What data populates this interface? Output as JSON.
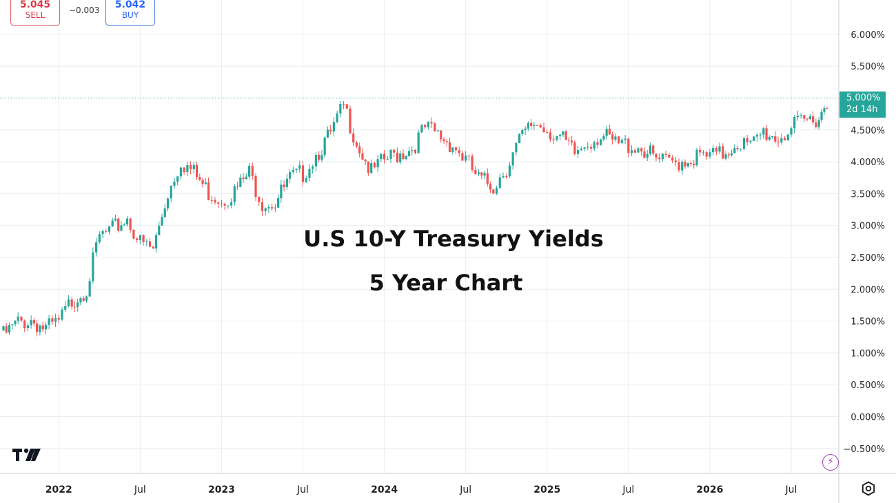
{
  "quotes": {
    "sell_price": "5.045",
    "sell_label": "SELL",
    "spread": "−0.003",
    "buy_price": "5.042",
    "buy_label": "BUY"
  },
  "last_price": {
    "value": "5.000%",
    "countdown": "2d 14h"
  },
  "icons": [
    "tradingview-logo-icon",
    "lightning-icon",
    "settings-gear-icon"
  ],
  "colors": {
    "up": "#26a69a",
    "down": "#ef5350",
    "grid": "#e8edf2",
    "price_line": "#26a69a",
    "bolt": "#ab47bc"
  },
  "chart_data": {
    "type": "candlestick",
    "title": "U.S 10-Y Treasury Yields",
    "subtitle": "5 Year Chart",
    "y_ticks": [
      "6.000%",
      "5.500%",
      "5.000%",
      "4.500%",
      "4.000%",
      "3.500%",
      "3.000%",
      "2.500%",
      "2.000%",
      "1.500%",
      "1.000%",
      "0.500%",
      "0.000%",
      "−0.500%"
    ],
    "y_tick_values": [
      6,
      5.5,
      5,
      4.5,
      4,
      3.5,
      3,
      2.5,
      2,
      1.5,
      1,
      0.5,
      0,
      -0.5
    ],
    "ylim": [
      -0.5,
      6.3
    ],
    "x_ticks": [
      "2022",
      "Jul",
      "2023",
      "Jul",
      "2024",
      "Jul",
      "2025",
      "Jul",
      "2026",
      "Jul"
    ],
    "x_tick_values": [
      2022.0,
      2022.5,
      2023.0,
      2023.5,
      2024.0,
      2024.5,
      2025.0,
      2025.5,
      2026.0,
      2026.5
    ],
    "xlim": [
      2021.66,
      2026.75
    ],
    "grid": true,
    "last_value": 5.0,
    "series": [
      {
        "x": [
          2021.66,
          2021.75,
          2021.83,
          2021.92,
          2022.0,
          2022.08,
          2022.17,
          2022.25,
          2022.33,
          2022.42,
          2022.5,
          2022.58,
          2022.67,
          2022.75,
          2022.83,
          2022.92,
          2023.0,
          2023.08,
          2023.17,
          2023.25,
          2023.33,
          2023.42,
          2023.5,
          2023.58,
          2023.67,
          2023.75,
          2023.83,
          2023.92,
          2024.0,
          2024.08,
          2024.17,
          2024.25,
          2024.33,
          2024.42,
          2024.5,
          2024.58,
          2024.67,
          2024.75,
          2024.83,
          2024.92,
          2025.0,
          2025.08,
          2025.17,
          2025.25,
          2025.33,
          2025.42,
          2025.5,
          2025.58,
          2025.67,
          2025.75,
          2025.83,
          2025.92,
          2026.0,
          2026.08,
          2026.17,
          2026.25,
          2026.33,
          2026.42,
          2026.5,
          2026.58,
          2026.67,
          2026.72
        ],
        "values": [
          1.35,
          1.55,
          1.6,
          1.45,
          1.55,
          1.9,
          2.1,
          2.9,
          3.0,
          3.2,
          2.8,
          2.7,
          3.6,
          4.1,
          3.9,
          3.6,
          3.5,
          3.6,
          3.9,
          3.45,
          3.45,
          3.8,
          3.9,
          4.2,
          4.5,
          4.95,
          4.4,
          3.9,
          4.1,
          4.2,
          4.3,
          4.6,
          4.5,
          4.35,
          4.1,
          3.8,
          3.7,
          4.0,
          4.4,
          4.7,
          4.6,
          4.45,
          4.2,
          4.4,
          4.5,
          4.35,
          4.35,
          4.3,
          4.1,
          4.05,
          4.1,
          4.15,
          4.15,
          4.2,
          4.4,
          4.3,
          4.55,
          4.45,
          4.6,
          4.7,
          4.8,
          5.0
        ]
      }
    ]
  }
}
